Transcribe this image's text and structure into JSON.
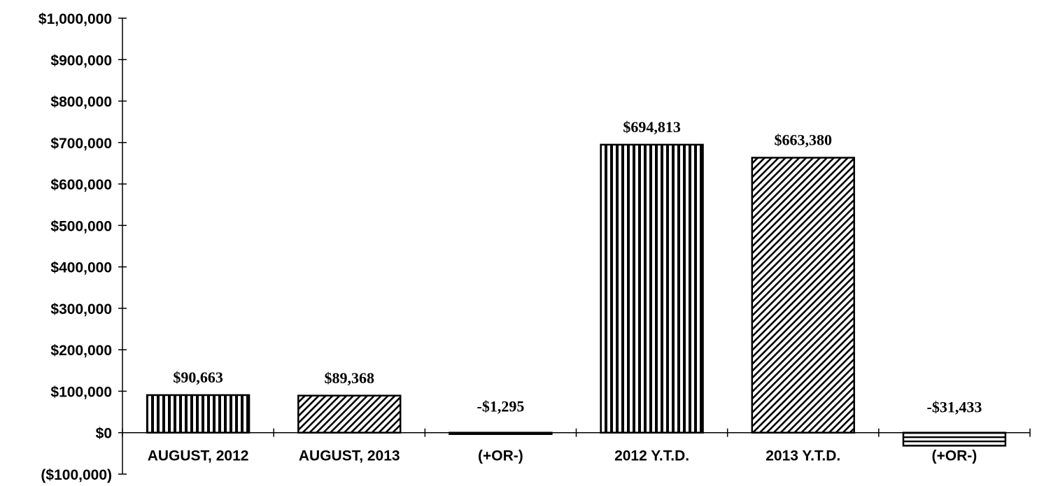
{
  "chart_data": {
    "type": "bar",
    "title": "",
    "xlabel": "",
    "ylabel": "",
    "categories": [
      "AUGUST, 2012",
      "AUGUST, 2013",
      "(+OR-)",
      "2012 Y.T.D.",
      "2013 Y.T.D.",
      "(+OR-)"
    ],
    "values": [
      90663,
      89368,
      -1295,
      694813,
      663380,
      -31433
    ],
    "data_labels": [
      "$90,663",
      "$89,368",
      "-$1,295",
      "$694,813",
      "$663,380",
      "-$31,433"
    ],
    "fill_patterns": [
      "vertical-stripes",
      "diagonal-hatch",
      "horizontal-stripes",
      "vertical-stripes",
      "diagonal-hatch",
      "horizontal-stripes"
    ],
    "ylim": [
      -100000,
      1000000
    ],
    "yticks": [
      -100000,
      0,
      100000,
      200000,
      300000,
      400000,
      500000,
      600000,
      700000,
      800000,
      900000,
      1000000
    ],
    "ytick_labels": [
      "($100,000)",
      "$0",
      "$100,000",
      "$200,000",
      "$300,000",
      "$400,000",
      "$500,000",
      "$600,000",
      "$700,000",
      "$800,000",
      "$900,000",
      "$1,000,000"
    ],
    "grid": false,
    "legend": "none",
    "colors": {
      "bar_stroke": "#000000",
      "background": "#ffffff",
      "text": "#000000"
    }
  }
}
